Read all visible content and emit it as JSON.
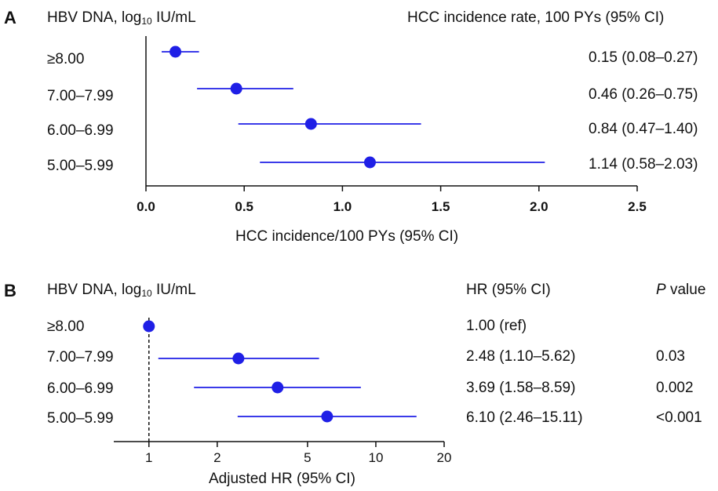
{
  "chart_data": [
    {
      "panel": "A",
      "type": "scatter",
      "header_left": {
        "main": "HBV DNA, log",
        "sub": "10",
        "unit": " IU/mL"
      },
      "header_right": "HCC incidence rate, 100 PYs (95% CI)",
      "xlabel": "HCC incidence/100 PYs (95% CI)",
      "xlim": [
        0.0,
        2.5
      ],
      "xticks": [
        "0.0",
        "0.5",
        "1.0",
        "1.5",
        "2.0",
        "2.5"
      ],
      "categories": [
        "≥8.00",
        "7.00–7.99",
        "6.00–6.99",
        "5.00–5.99"
      ],
      "estimates": [
        0.15,
        0.46,
        0.84,
        1.14
      ],
      "ci_low": [
        0.08,
        0.26,
        0.47,
        0.58
      ],
      "ci_high": [
        0.27,
        0.75,
        1.4,
        2.03
      ],
      "value_labels": [
        "0.15 (0.08–0.27)",
        "0.46 (0.26–0.75)",
        "0.84 (0.47–1.40)",
        "1.14 (0.58–2.03)"
      ],
      "color": "#1f1fe6"
    },
    {
      "panel": "B",
      "type": "scatter",
      "scale": "log",
      "header_left": {
        "main": "HBV DNA, log",
        "sub": "10",
        "unit": " IU/mL"
      },
      "header_hr": "HR (95% CI)",
      "header_p": {
        "italic": "P",
        "rest": " value"
      },
      "xlabel": "Adjusted HR (95% CI)",
      "xlim": [
        0.7,
        20
      ],
      "xticks": [
        "1",
        "2",
        "5",
        "10",
        "20"
      ],
      "reference_line": 1,
      "categories": [
        "≥8.00",
        "7.00–7.99",
        "6.00–6.99",
        "5.00–5.99"
      ],
      "estimates": [
        1.0,
        2.48,
        3.69,
        6.1
      ],
      "ci_low": [
        null,
        1.1,
        1.58,
        2.46
      ],
      "ci_high": [
        null,
        5.62,
        8.59,
        15.11
      ],
      "value_labels": [
        "1.00 (ref)",
        "2.48 (1.10–5.62)",
        "3.69 (1.58–8.59)",
        "6.10 (2.46–15.11)"
      ],
      "p_values": [
        "",
        "0.03",
        "0.002",
        "<0.001"
      ],
      "color": "#1f1fe6"
    }
  ]
}
